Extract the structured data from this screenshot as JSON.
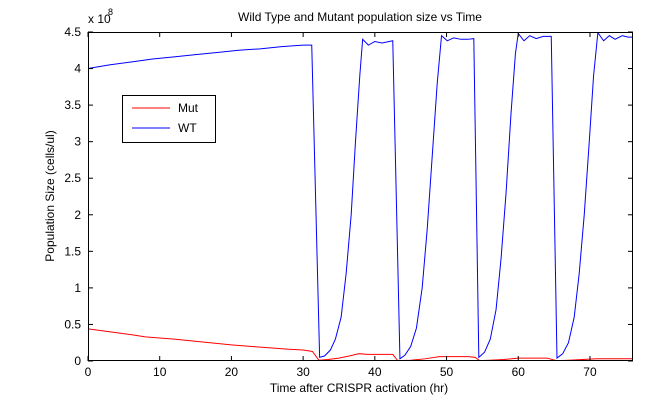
{
  "chart_data": {
    "type": "line",
    "title": "Wild Type and Mutant population size vs Time",
    "xlabel": "Time after CRISPR activation (hr)",
    "ylabel": "Population Size (cells/ul)",
    "y_exponent_label": "x 10",
    "y_exponent_power": "8",
    "xlim": [
      0,
      76
    ],
    "ylim": [
      0,
      4.5
    ],
    "x_ticks": [
      0,
      10,
      20,
      30,
      40,
      50,
      60,
      70
    ],
    "x_tick_labels": [
      "0",
      "10",
      "20",
      "30",
      "40",
      "50",
      "60",
      "70"
    ],
    "y_ticks": [
      0,
      0.5,
      1,
      1.5,
      2,
      2.5,
      3,
      3.5,
      4,
      4.5
    ],
    "y_tick_labels": [
      "0",
      "0.5",
      "1",
      "1.5",
      "2",
      "2.5",
      "3",
      "3.5",
      "4",
      "4.5"
    ],
    "grid": false,
    "legend_position": "upper-left",
    "series": [
      {
        "name": "Mut",
        "color": "#ff0000",
        "points": [
          [
            0,
            0.44
          ],
          [
            3,
            0.4
          ],
          [
            6,
            0.36
          ],
          [
            8,
            0.33
          ],
          [
            12,
            0.3
          ],
          [
            16,
            0.26
          ],
          [
            20,
            0.22
          ],
          [
            24,
            0.19
          ],
          [
            28,
            0.16
          ],
          [
            30,
            0.15
          ],
          [
            31.3,
            0.13
          ],
          [
            32.2,
            0.01
          ],
          [
            33.5,
            0.02
          ],
          [
            35,
            0.04
          ],
          [
            36.5,
            0.07
          ],
          [
            37.8,
            0.1
          ],
          [
            39,
            0.09
          ],
          [
            41,
            0.09
          ],
          [
            42.5,
            0.09
          ],
          [
            43.2,
            0.005
          ],
          [
            45,
            0.01
          ],
          [
            47,
            0.03
          ],
          [
            49,
            0.06
          ],
          [
            51,
            0.06
          ],
          [
            53,
            0.06
          ],
          [
            54,
            0.05
          ],
          [
            54.6,
            0.005
          ],
          [
            56,
            0.01
          ],
          [
            58,
            0.02
          ],
          [
            60,
            0.04
          ],
          [
            62,
            0.04
          ],
          [
            64,
            0.04
          ],
          [
            65.3,
            0.005
          ],
          [
            67,
            0.01
          ],
          [
            69,
            0.02
          ],
          [
            71,
            0.03
          ],
          [
            73,
            0.03
          ],
          [
            76,
            0.03
          ]
        ]
      },
      {
        "name": "WT",
        "color": "#0000ff",
        "points": [
          [
            0,
            4.0
          ],
          [
            3,
            4.05
          ],
          [
            6,
            4.09
          ],
          [
            9,
            4.13
          ],
          [
            12,
            4.16
          ],
          [
            15,
            4.19
          ],
          [
            18,
            4.22
          ],
          [
            21,
            4.25
          ],
          [
            24,
            4.27
          ],
          [
            27,
            4.3
          ],
          [
            30,
            4.32
          ],
          [
            31.2,
            4.32
          ],
          [
            32.3,
            0.05
          ],
          [
            33,
            0.07
          ],
          [
            33.8,
            0.15
          ],
          [
            34.5,
            0.3
          ],
          [
            35.3,
            0.6
          ],
          [
            36,
            1.2
          ],
          [
            36.7,
            2.0
          ],
          [
            37.3,
            3.0
          ],
          [
            37.9,
            3.9
          ],
          [
            38.3,
            4.4
          ],
          [
            39.1,
            4.32
          ],
          [
            40,
            4.37
          ],
          [
            41,
            4.35
          ],
          [
            42,
            4.37
          ],
          [
            42.5,
            4.38
          ],
          [
            43.5,
            0.03
          ],
          [
            44.2,
            0.08
          ],
          [
            45,
            0.2
          ],
          [
            45.8,
            0.45
          ],
          [
            46.6,
            1.0
          ],
          [
            47.3,
            1.8
          ],
          [
            48,
            2.8
          ],
          [
            48.7,
            3.8
          ],
          [
            49.3,
            4.45
          ],
          [
            50.1,
            4.38
          ],
          [
            51,
            4.42
          ],
          [
            52,
            4.4
          ],
          [
            53,
            4.4
          ],
          [
            53.8,
            4.41
          ],
          [
            54.5,
            0.05
          ],
          [
            55.3,
            0.12
          ],
          [
            56.1,
            0.3
          ],
          [
            56.9,
            0.7
          ],
          [
            57.6,
            1.4
          ],
          [
            58.3,
            2.3
          ],
          [
            59,
            3.4
          ],
          [
            59.6,
            4.2
          ],
          [
            60,
            4.48
          ],
          [
            60.8,
            4.38
          ],
          [
            61.6,
            4.45
          ],
          [
            62.5,
            4.41
          ],
          [
            63.5,
            4.44
          ],
          [
            64.6,
            4.44
          ],
          [
            65.4,
            0.04
          ],
          [
            66.2,
            0.1
          ],
          [
            67,
            0.25
          ],
          [
            67.8,
            0.6
          ],
          [
            68.5,
            1.2
          ],
          [
            69.2,
            2.0
          ],
          [
            69.9,
            3.0
          ],
          [
            70.5,
            3.9
          ],
          [
            71.1,
            4.49
          ],
          [
            71.9,
            4.38
          ],
          [
            72.7,
            4.45
          ],
          [
            73.5,
            4.4
          ],
          [
            74.5,
            4.45
          ],
          [
            75.3,
            4.43
          ],
          [
            76,
            4.43
          ]
        ]
      }
    ]
  }
}
